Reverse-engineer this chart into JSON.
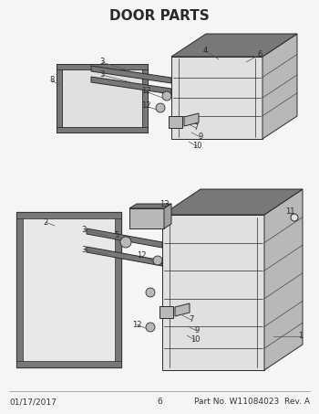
{
  "title": "DOOR PARTS",
  "title_fontsize": 11,
  "title_fontweight": "bold",
  "bg_color": "#f5f5f5",
  "line_color": "#2a2a2a",
  "fill_light": "#e0e0e0",
  "fill_mid": "#b8b8b8",
  "fill_dark": "#787878",
  "fill_white": "#f0f0f0",
  "fill_stripe": "#c8c8c8",
  "footer_left": "01/17/2017",
  "footer_center": "6",
  "footer_right": "Part No. W11084023  Rev. A",
  "footer_fontsize": 6.5
}
